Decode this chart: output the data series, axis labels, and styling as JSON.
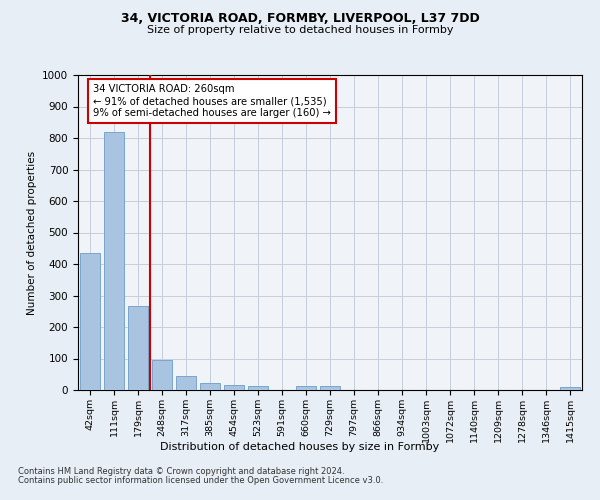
{
  "title1": "34, VICTORIA ROAD, FORMBY, LIVERPOOL, L37 7DD",
  "title2": "Size of property relative to detached houses in Formby",
  "xlabel": "Distribution of detached houses by size in Formby",
  "ylabel": "Number of detached properties",
  "categories": [
    "42sqm",
    "111sqm",
    "179sqm",
    "248sqm",
    "317sqm",
    "385sqm",
    "454sqm",
    "523sqm",
    "591sqm",
    "660sqm",
    "729sqm",
    "797sqm",
    "866sqm",
    "934sqm",
    "1003sqm",
    "1072sqm",
    "1140sqm",
    "1209sqm",
    "1278sqm",
    "1346sqm",
    "1415sqm"
  ],
  "values": [
    435,
    820,
    268,
    95,
    46,
    22,
    17,
    12,
    0,
    12,
    12,
    0,
    0,
    0,
    0,
    0,
    0,
    0,
    0,
    0,
    10
  ],
  "bar_color": "#a8c4e0",
  "bar_edge_color": "#5a8fc0",
  "annotation_line1": "34 VICTORIA ROAD: 260sqm",
  "annotation_line2": "← 91% of detached houses are smaller (1,535)",
  "annotation_line3": "9% of semi-detached houses are larger (160) →",
  "vline_x": 2.5,
  "vline_color": "#cc0000",
  "box_color": "#cc0000",
  "ylim": [
    0,
    1000
  ],
  "yticks": [
    0,
    100,
    200,
    300,
    400,
    500,
    600,
    700,
    800,
    900,
    1000
  ],
  "footer1": "Contains HM Land Registry data © Crown copyright and database right 2024.",
  "footer2": "Contains public sector information licensed under the Open Government Licence v3.0.",
  "background_color": "#e8eef5",
  "plot_bg_color": "#f0f4f8"
}
